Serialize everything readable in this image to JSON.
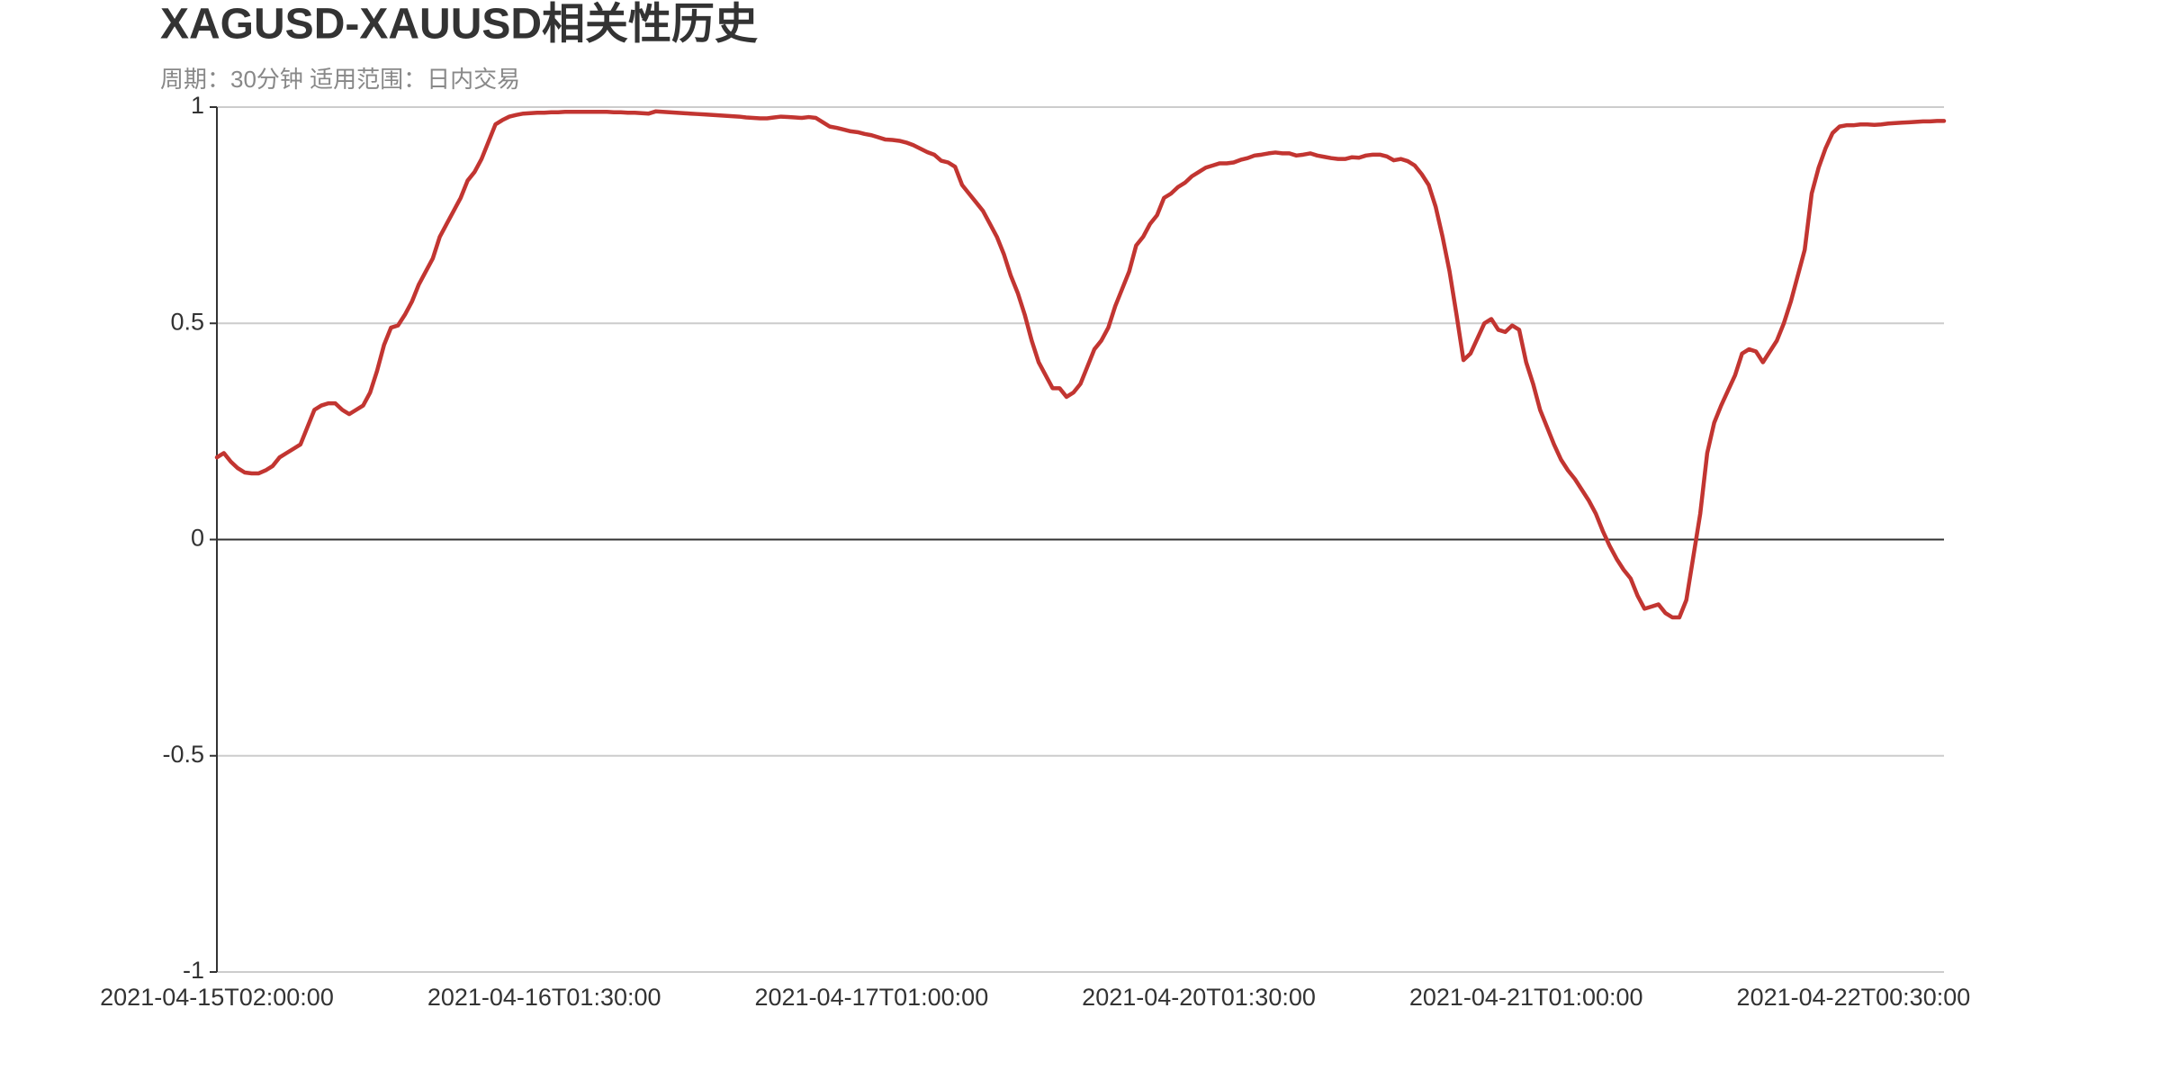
{
  "chart_data": {
    "type": "line",
    "title": "XAGUSD-XAUUSD相关性历史",
    "subtitle": "周期：30分钟 适用范围：日内交易",
    "categories": [
      "2021-04-15T02:00:00",
      null,
      null,
      null,
      null,
      null,
      null,
      null,
      null,
      null,
      null,
      null,
      null,
      null,
      null,
      null,
      null,
      null,
      null,
      null,
      null,
      null,
      null,
      null,
      null,
      null,
      null,
      null,
      null,
      null,
      null,
      null,
      null,
      null,
      null,
      null,
      null,
      null,
      null,
      null,
      null,
      null,
      null,
      null,
      null,
      null,
      null,
      "2021-04-16T01:30:00",
      null,
      null,
      null,
      null,
      null,
      null,
      null,
      null,
      null,
      null,
      null,
      null,
      null,
      null,
      null,
      null,
      null,
      null,
      null,
      null,
      null,
      null,
      null,
      null,
      null,
      null,
      null,
      null,
      null,
      null,
      null,
      null,
      null,
      null,
      null,
      null,
      null,
      null,
      null,
      null,
      null,
      null,
      null,
      null,
      null,
      null,
      "2021-04-17T01:00:00",
      null,
      null,
      null,
      null,
      null,
      null,
      null,
      null,
      null,
      null,
      null,
      null,
      null,
      null,
      null,
      null,
      null,
      null,
      null,
      null,
      null,
      null,
      null,
      null,
      null,
      null,
      null,
      null,
      null,
      null,
      null,
      null,
      null,
      null,
      null,
      null,
      null,
      null,
      null,
      null,
      null,
      null,
      null,
      null,
      null,
      null,
      "2021-04-20T01:30:00",
      null,
      null,
      null,
      null,
      null,
      null,
      null,
      null,
      null,
      null,
      null,
      null,
      null,
      null,
      null,
      null,
      null,
      null,
      null,
      null,
      null,
      null,
      null,
      null,
      null,
      null,
      null,
      null,
      null,
      null,
      null,
      null,
      null,
      null,
      null,
      null,
      null,
      null,
      null,
      null,
      null,
      null,
      null,
      null,
      null,
      null,
      "2021-04-21T01:00:00",
      null,
      null,
      null,
      null,
      null,
      null,
      null,
      null,
      null,
      null,
      null,
      null,
      null,
      null,
      null,
      null,
      null,
      null,
      null,
      null,
      null,
      null,
      null,
      null,
      null,
      null,
      null,
      null,
      null,
      null,
      null,
      null,
      null,
      null,
      null,
      null,
      null,
      null,
      null,
      null,
      null,
      null,
      null,
      null,
      null,
      null,
      "2021-04-22T00:30:00",
      null,
      null,
      null,
      null,
      null,
      null,
      null,
      null,
      null,
      null,
      null,
      null,
      null
    ],
    "values": [
      0.19,
      0.2,
      0.18,
      0.165,
      0.155,
      0.153,
      0.153,
      0.16,
      0.17,
      0.19,
      0.2,
      0.21,
      0.22,
      0.26,
      0.3,
      0.31,
      0.315,
      0.315,
      0.3,
      0.29,
      0.3,
      0.31,
      0.34,
      0.39,
      0.45,
      0.49,
      0.495,
      0.52,
      0.55,
      0.59,
      0.62,
      0.65,
      0.7,
      0.73,
      0.76,
      0.79,
      0.83,
      0.85,
      0.88,
      0.92,
      0.96,
      0.97,
      0.978,
      0.982,
      0.985,
      0.986,
      0.987,
      0.987,
      0.988,
      0.988,
      0.989,
      0.989,
      0.989,
      0.989,
      0.989,
      0.989,
      0.989,
      0.988,
      0.988,
      0.987,
      0.987,
      0.986,
      0.985,
      0.99,
      0.989,
      0.988,
      0.987,
      0.986,
      0.985,
      0.984,
      0.983,
      0.982,
      0.981,
      0.98,
      0.979,
      0.978,
      0.976,
      0.975,
      0.974,
      0.974,
      0.976,
      0.978,
      0.977,
      0.976,
      0.975,
      0.977,
      0.975,
      0.965,
      0.955,
      0.952,
      0.948,
      0.944,
      0.942,
      0.938,
      0.935,
      0.93,
      0.925,
      0.924,
      0.922,
      0.918,
      0.912,
      0.904,
      0.896,
      0.89,
      0.876,
      0.872,
      0.862,
      0.82,
      0.8,
      0.78,
      0.76,
      0.73,
      0.7,
      0.66,
      0.61,
      0.57,
      0.52,
      0.46,
      0.41,
      0.38,
      0.35,
      0.35,
      0.33,
      0.34,
      0.36,
      0.4,
      0.44,
      0.46,
      0.49,
      0.54,
      0.58,
      0.62,
      0.68,
      0.7,
      0.73,
      0.75,
      0.79,
      0.8,
      0.815,
      0.825,
      0.84,
      0.85,
      0.86,
      0.865,
      0.87,
      0.87,
      0.872,
      0.878,
      0.882,
      0.888,
      0.89,
      0.893,
      0.895,
      0.893,
      0.893,
      0.888,
      0.89,
      0.893,
      0.888,
      0.885,
      0.882,
      0.88,
      0.88,
      0.884,
      0.883,
      0.888,
      0.89,
      0.89,
      0.886,
      0.877,
      0.88,
      0.875,
      0.865,
      0.845,
      0.82,
      0.77,
      0.7,
      0.62,
      0.52,
      0.415,
      0.43,
      0.465,
      0.5,
      0.51,
      0.485,
      0.48,
      0.495,
      0.485,
      0.41,
      0.36,
      0.3,
      0.26,
      0.22,
      0.185,
      0.16,
      0.14,
      0.115,
      0.09,
      0.06,
      0.02,
      -0.015,
      -0.045,
      -0.07,
      -0.09,
      -0.13,
      -0.16,
      -0.155,
      -0.15,
      -0.17,
      -0.18,
      -0.18,
      -0.14,
      -0.04,
      0.06,
      0.2,
      0.27,
      0.31,
      0.345,
      0.38,
      0.43,
      0.44,
      0.435,
      0.41,
      0.435,
      0.46,
      0.5,
      0.55,
      0.61,
      0.67,
      0.8,
      0.86,
      0.905,
      0.94,
      0.955,
      0.958,
      0.958,
      0.96,
      0.96,
      0.959,
      0.96,
      0.962,
      0.963,
      0.964,
      0.965,
      0.966,
      0.967,
      0.967,
      0.968,
      0.968
    ],
    "color": "#c23531",
    "ylim": [
      -1,
      1
    ],
    "yticks": [
      -1,
      -0.5,
      0,
      0.5,
      1
    ],
    "grid": true
  }
}
